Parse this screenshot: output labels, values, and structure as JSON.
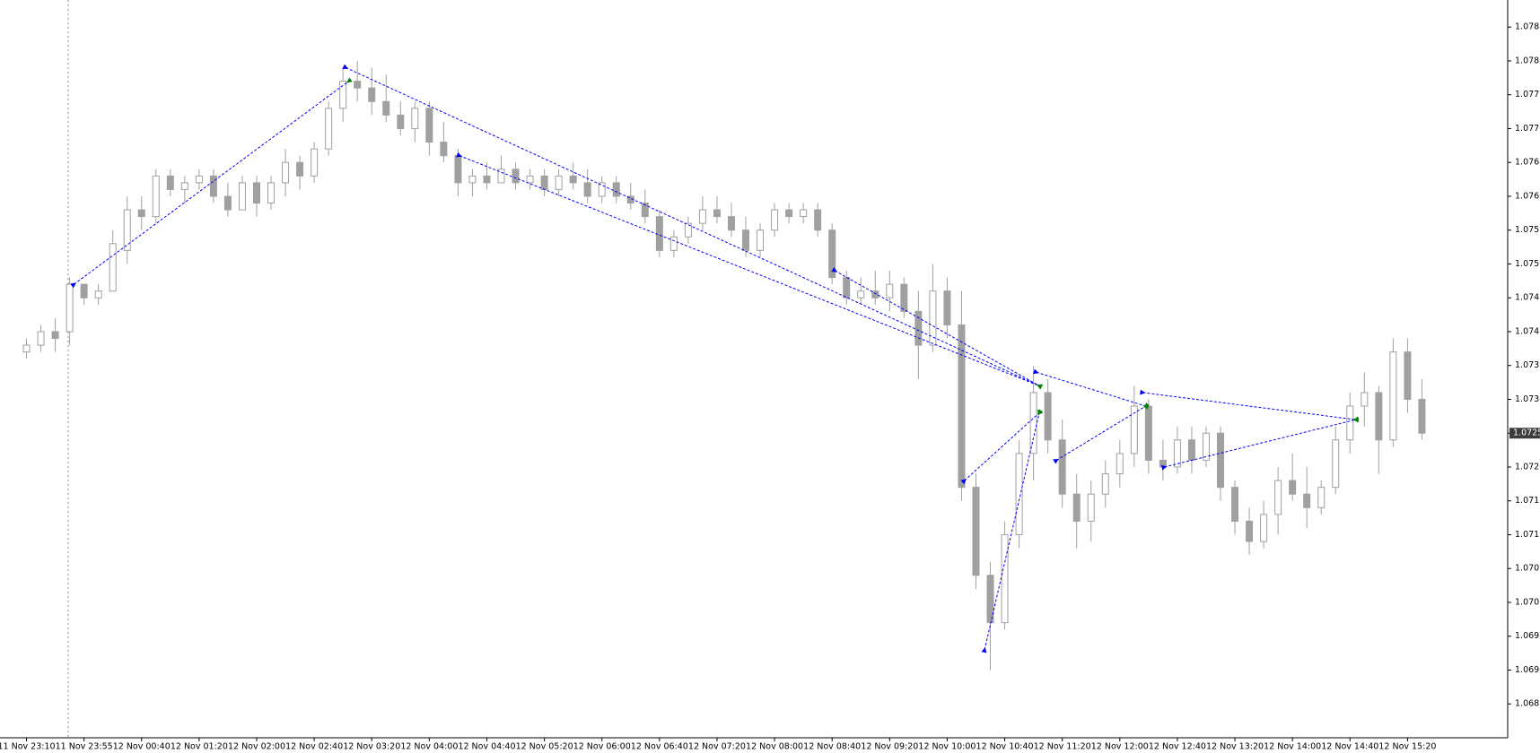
{
  "chart_data": {
    "type": "candlestick",
    "categories": [
      "11 Nov 23:10",
      null,
      null,
      null,
      "11 Nov 23:55",
      null,
      null,
      null,
      "12 Nov 00:40",
      null,
      null,
      null,
      "12 Nov 01:20",
      null,
      null,
      null,
      "12 Nov 02:00",
      null,
      null,
      null,
      "12 Nov 02:40",
      null,
      null,
      null,
      "12 Nov 03:20",
      null,
      null,
      null,
      "12 Nov 04:00",
      null,
      null,
      null,
      "12 Nov 04:40",
      null,
      null,
      null,
      "12 Nov 05:20",
      null,
      null,
      null,
      "12 Nov 06:00",
      null,
      null,
      null,
      "12 Nov 06:40",
      null,
      null,
      null,
      "12 Nov 07:20",
      null,
      null,
      null,
      "12 Nov 08:00",
      null,
      null,
      null,
      "12 Nov 08:40",
      null,
      null,
      null,
      "12 Nov 09:20",
      null,
      null,
      null,
      "12 Nov 10:00",
      null,
      null,
      null,
      "12 Nov 10:40",
      null,
      null,
      null,
      "12 Nov 11:20",
      null,
      null,
      null,
      "12 Nov 12:00",
      null,
      null,
      null,
      "12 Nov 12:40",
      null,
      null,
      null,
      "12 Nov 13:20",
      null,
      null,
      null,
      "12 Nov 14:00",
      null,
      null,
      null,
      "12 Nov 14:40",
      null,
      null,
      null,
      "12 Nov 15:20",
      null
    ],
    "open": [
      1.0737,
      1.0738,
      1.074,
      1.074,
      1.0747,
      1.0745,
      1.0746,
      1.0752,
      1.0758,
      1.0757,
      1.0763,
      1.0761,
      1.0762,
      1.0763,
      1.076,
      1.0758,
      1.0762,
      1.0759,
      1.0762,
      1.0765,
      1.0763,
      1.0767,
      1.0773,
      1.0777,
      1.0776,
      1.0774,
      1.0772,
      1.077,
      1.0773,
      1.0768,
      1.0766,
      1.0762,
      1.0763,
      1.0762,
      1.0764,
      1.0762,
      1.0763,
      1.0761,
      1.0763,
      1.0762,
      1.076,
      1.0762,
      1.076,
      1.0759,
      1.0757,
      1.0752,
      1.0754,
      1.0756,
      1.0758,
      1.0757,
      1.0755,
      1.0752,
      1.0755,
      1.0758,
      1.0757,
      1.0758,
      1.0755,
      1.0748,
      1.0745,
      1.0746,
      1.0745,
      1.0747,
      1.0743,
      1.0738,
      1.0746,
      1.0741,
      1.0717,
      1.0704,
      1.0697,
      1.071,
      1.0722,
      1.0731,
      1.0724,
      1.0716,
      1.0712,
      1.0716,
      1.0719,
      1.0722,
      1.0729,
      1.0721,
      1.072,
      1.0724,
      1.0721,
      1.0725,
      1.0717,
      1.0712,
      1.0709,
      1.0713,
      1.0718,
      1.0716,
      1.0714,
      1.0717,
      1.0724,
      1.0729,
      1.0731,
      1.0724,
      1.0737,
      1.073
    ],
    "high": [
      1.0739,
      1.0741,
      1.0742,
      1.0748,
      1.0747,
      1.0747,
      1.0755,
      1.076,
      1.076,
      1.0764,
      1.0764,
      1.0763,
      1.0764,
      1.0764,
      1.0762,
      1.0763,
      1.0763,
      1.0763,
      1.0767,
      1.0766,
      1.0768,
      1.0774,
      1.0779,
      1.078,
      1.0779,
      1.0778,
      1.0774,
      1.0774,
      1.0774,
      1.0771,
      1.0767,
      1.0764,
      1.0765,
      1.0766,
      1.0765,
      1.0764,
      1.0764,
      1.0764,
      1.0765,
      1.0764,
      1.0763,
      1.0763,
      1.0762,
      1.0761,
      1.0758,
      1.0755,
      1.0757,
      1.076,
      1.076,
      1.0759,
      1.0757,
      1.0756,
      1.0759,
      1.0759,
      1.0759,
      1.0759,
      1.0756,
      1.0749,
      1.0748,
      1.0749,
      1.0749,
      1.0748,
      1.0746,
      1.075,
      1.0748,
      1.0746,
      1.0719,
      1.0706,
      1.0712,
      1.0724,
      1.0735,
      1.0733,
      1.0727,
      1.0719,
      1.0718,
      1.0721,
      1.0724,
      1.0732,
      1.073,
      1.0724,
      1.0726,
      1.0726,
      1.0726,
      1.0726,
      1.0718,
      1.0714,
      1.0715,
      1.072,
      1.0722,
      1.072,
      1.0718,
      1.0726,
      1.0731,
      1.0734,
      1.0732,
      1.0739,
      1.0739,
      1.0733
    ],
    "low": [
      1.0736,
      1.0737,
      1.0737,
      1.0738,
      1.0744,
      1.0744,
      1.0746,
      1.075,
      1.0755,
      1.0756,
      1.076,
      1.0759,
      1.0761,
      1.0759,
      1.0757,
      1.0758,
      1.0757,
      1.0758,
      1.076,
      1.0761,
      1.0762,
      1.0766,
      1.0771,
      1.0774,
      1.0772,
      1.0771,
      1.0769,
      1.0768,
      1.0766,
      1.0765,
      1.076,
      1.076,
      1.0761,
      1.0762,
      1.0761,
      1.0761,
      1.076,
      1.076,
      1.0761,
      1.0759,
      1.0759,
      1.0759,
      1.0758,
      1.0756,
      1.0751,
      1.0751,
      1.0753,
      1.0755,
      1.0756,
      1.0754,
      1.0751,
      1.0751,
      1.0754,
      1.0756,
      1.0756,
      1.0754,
      1.0747,
      1.0744,
      1.0744,
      1.0744,
      1.0743,
      1.0742,
      1.0733,
      1.0737,
      1.0739,
      1.0715,
      1.0702,
      1.069,
      1.0696,
      1.0708,
      1.0718,
      1.0722,
      1.0714,
      1.0708,
      1.0709,
      1.0714,
      1.0717,
      1.072,
      1.0719,
      1.0718,
      1.0719,
      1.0719,
      1.072,
      1.0715,
      1.071,
      1.0707,
      1.0708,
      1.071,
      1.0715,
      1.0711,
      1.0713,
      1.0716,
      1.0722,
      1.0726,
      1.0719,
      1.0723,
      1.0728,
      1.0724
    ],
    "close": [
      1.0738,
      1.074,
      1.0739,
      1.0747,
      1.0745,
      1.0746,
      1.0753,
      1.0758,
      1.0757,
      1.0763,
      1.0761,
      1.0762,
      1.0763,
      1.076,
      1.0758,
      1.0762,
      1.0759,
      1.0762,
      1.0765,
      1.0763,
      1.0767,
      1.0773,
      1.0777,
      1.0776,
      1.0774,
      1.0772,
      1.077,
      1.0773,
      1.0768,
      1.0766,
      1.0762,
      1.0763,
      1.0762,
      1.0764,
      1.0762,
      1.0763,
      1.0761,
      1.0763,
      1.0762,
      1.076,
      1.0762,
      1.076,
      1.0759,
      1.0757,
      1.0752,
      1.0754,
      1.0756,
      1.0758,
      1.0757,
      1.0755,
      1.0752,
      1.0755,
      1.0758,
      1.0757,
      1.0758,
      1.0755,
      1.0748,
      1.0745,
      1.0746,
      1.0745,
      1.0747,
      1.0743,
      1.0738,
      1.0746,
      1.0741,
      1.0717,
      1.0704,
      1.0697,
      1.071,
      1.0722,
      1.0731,
      1.0724,
      1.0716,
      1.0712,
      1.0716,
      1.0719,
      1.0722,
      1.0729,
      1.0721,
      1.072,
      1.0724,
      1.0721,
      1.0725,
      1.0717,
      1.0712,
      1.0709,
      1.0713,
      1.0718,
      1.0716,
      1.0714,
      1.0717,
      1.0724,
      1.0729,
      1.0731,
      1.0724,
      1.0737,
      1.073,
      1.0725
    ],
    "color": "#a0a0a0",
    "ylim": [
      1.068,
      1.0789
    ],
    "yticks": [
      1.0685,
      {
        "value": 1.069,
        "label": "1.0690"
      },
      1.0695,
      {
        "value": 1.07,
        "label": "1.0700"
      },
      1.0705,
      {
        "value": 1.071,
        "label": "1.0710"
      },
      1.0715,
      {
        "value": 1.072,
        "label": "1.0720"
      },
      1.0725,
      {
        "value": 1.073,
        "label": "1.0730"
      },
      1.0735,
      {
        "value": 1.074,
        "label": "1.0740"
      },
      1.0745,
      {
        "value": 1.075,
        "label": "1.0750"
      },
      1.0755,
      {
        "value": 1.076,
        "label": "1.0760"
      },
      1.0765,
      {
        "value": 1.077,
        "label": "1.0770"
      },
      1.0775,
      {
        "value": 1.078,
        "label": "1.0780"
      },
      1.0785
    ],
    "last_price": 1.0725,
    "zigzag_color": "#0000ff",
    "zigzag": [
      {
        "x": [
          3.3,
          22.4
        ],
        "y": [
          1.0747,
          1.0777
        ]
      },
      {
        "x": [
          22.2,
          70.4
        ],
        "y": [
          1.0779,
          1.0732
        ]
      },
      {
        "x": [
          30.1,
          70.4
        ],
        "y": [
          1.0766,
          1.0732
        ]
      },
      {
        "x": [
          56.2,
          70.4
        ],
        "y": [
          1.0749,
          1.0732
        ]
      },
      {
        "x": [
          65.2,
          70.4
        ],
        "y": [
          1.0718,
          1.0728
        ]
      },
      {
        "x": [
          66.6,
          70.4
        ],
        "y": [
          1.0693,
          1.0728
        ]
      },
      {
        "x": [
          70.2,
          77.8
        ],
        "y": [
          1.0734,
          1.0729
        ]
      },
      {
        "x": [
          71.6,
          77.8
        ],
        "y": [
          1.0721,
          1.0729
        ]
      },
      {
        "x": [
          77.6,
          92.4
        ],
        "y": [
          1.0731,
          1.0727
        ]
      },
      {
        "x": [
          79.1,
          92.4
        ],
        "y": [
          1.072,
          1.0727
        ]
      }
    ]
  }
}
